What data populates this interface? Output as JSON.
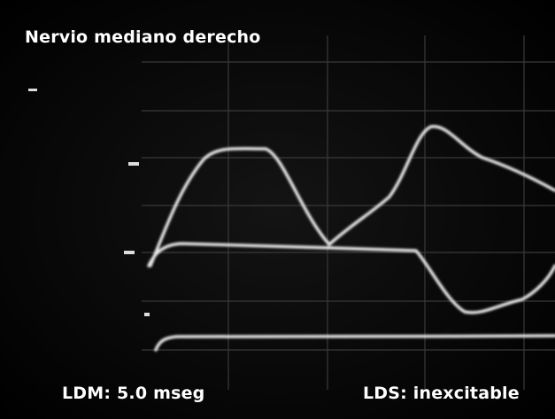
{
  "title": "Nervio mediano derecho",
  "left_label": "LDM: 5.0 mseg",
  "right_label": "LDS: inexcitable"
}
